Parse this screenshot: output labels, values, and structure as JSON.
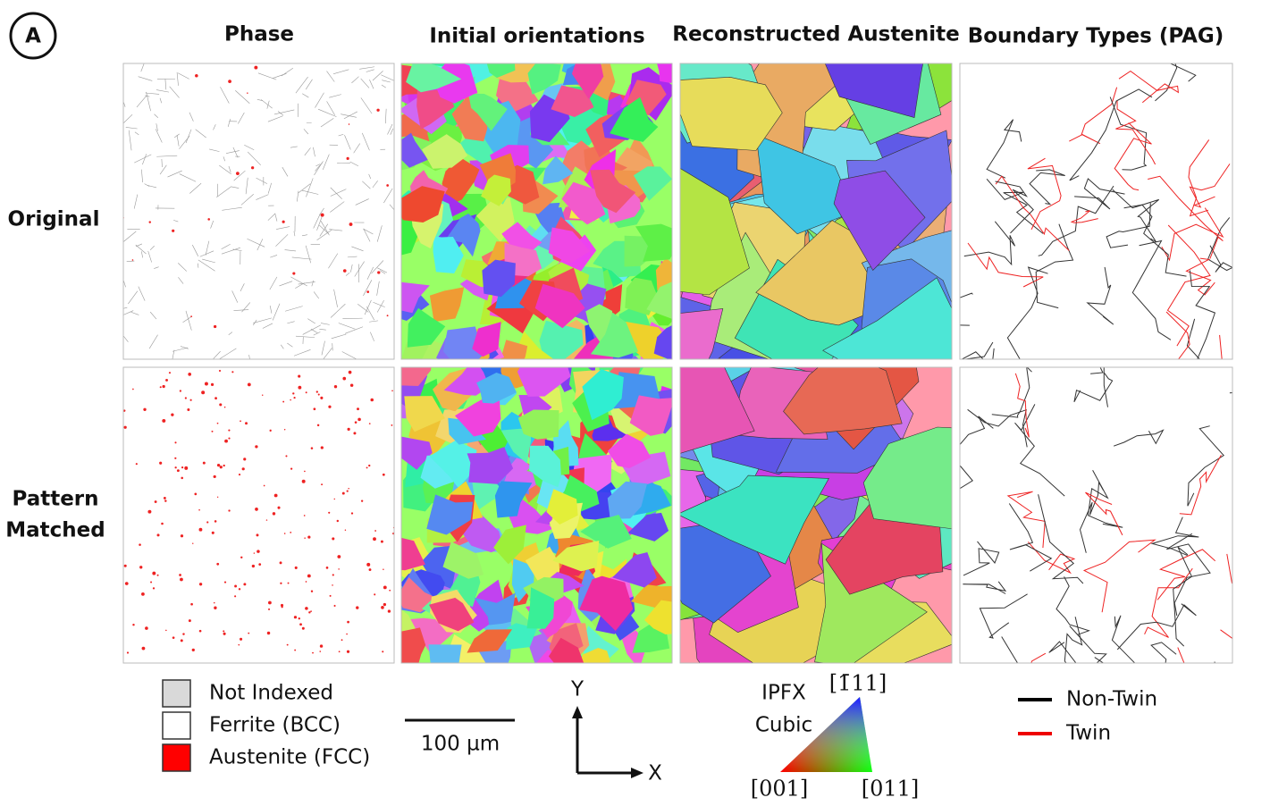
{
  "figure": {
    "panel_letter": "A",
    "column_headers": [
      "Phase",
      "Initial orientations",
      "Reconstructed Austenite",
      "Boundary Types (PAG)"
    ],
    "row_labels": [
      [
        "Original"
      ],
      [
        "Pattern",
        "Matched"
      ]
    ],
    "phase_legend": [
      "Not Indexed",
      "Ferrite (BCC)",
      "Austenite (FCC)"
    ],
    "scale_bar": "100 µm",
    "axes": {
      "y": "Y",
      "x": "X"
    },
    "ipf_key": {
      "title": [
        "IPFX",
        "Cubic"
      ],
      "top": "[1̄11]",
      "left": "[001]",
      "right": "[011]"
    },
    "boundary_legend": [
      "Non-Twin",
      "Twin"
    ]
  }
}
